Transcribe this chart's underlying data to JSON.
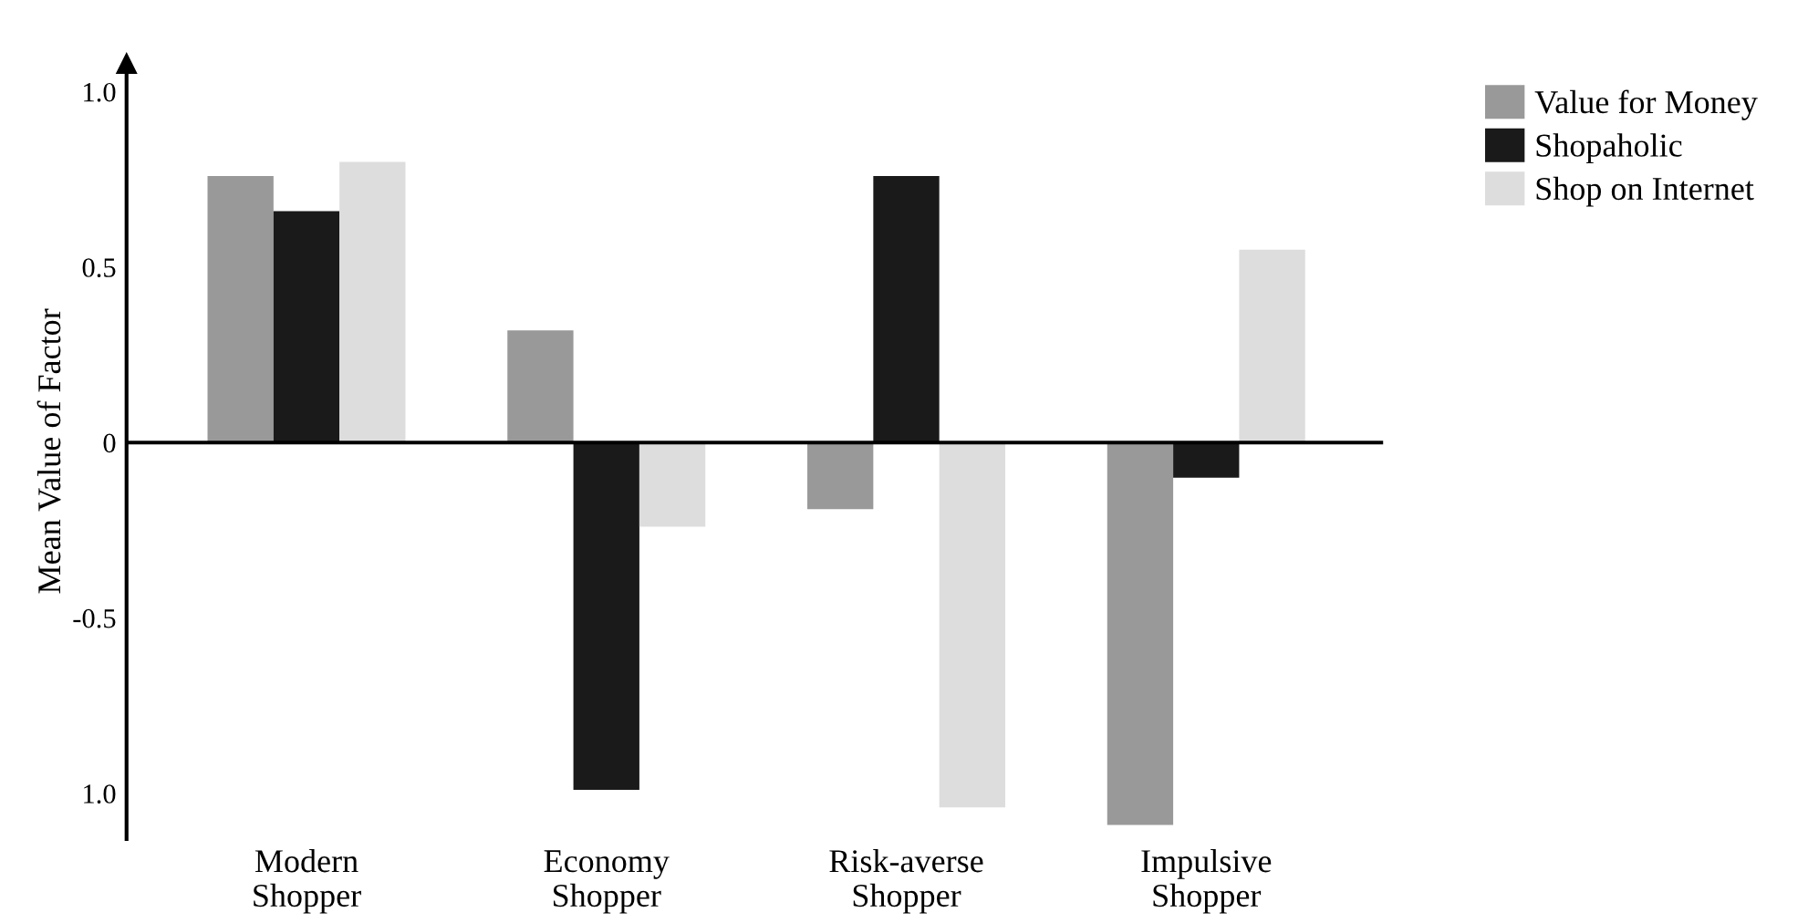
{
  "chart_data": {
    "type": "bar",
    "ylabel": "Mean Value of Factor",
    "categories": [
      "Modern\nShopper",
      "Economy\nShopper",
      "Risk-averse\nShopper",
      "Impulsive\nShopper"
    ],
    "series": [
      {
        "name": "Value for Money",
        "color": "#999999",
        "values": [
          0.76,
          0.32,
          -0.19,
          -1.09
        ]
      },
      {
        "name": "Shopaholic",
        "color": "#1a1a1a",
        "values": [
          0.66,
          -0.99,
          0.76,
          -0.1
        ]
      },
      {
        "name": "Shop on Internet",
        "color": "#dddddd",
        "values": [
          0.8,
          -0.24,
          -1.04,
          0.55
        ]
      }
    ],
    "ylim": [
      -1.13,
      1.08
    ],
    "yticks": [
      {
        "value": -1,
        "label": "1.0"
      },
      -0.5,
      0,
      0.5,
      {
        "value": 1,
        "label": "1.0"
      }
    ],
    "grid": false,
    "ref_lines": [
      {
        "axis": "y",
        "value": 0,
        "color": "#000000",
        "line_style": "solid"
      }
    ],
    "legend": "top right"
  }
}
